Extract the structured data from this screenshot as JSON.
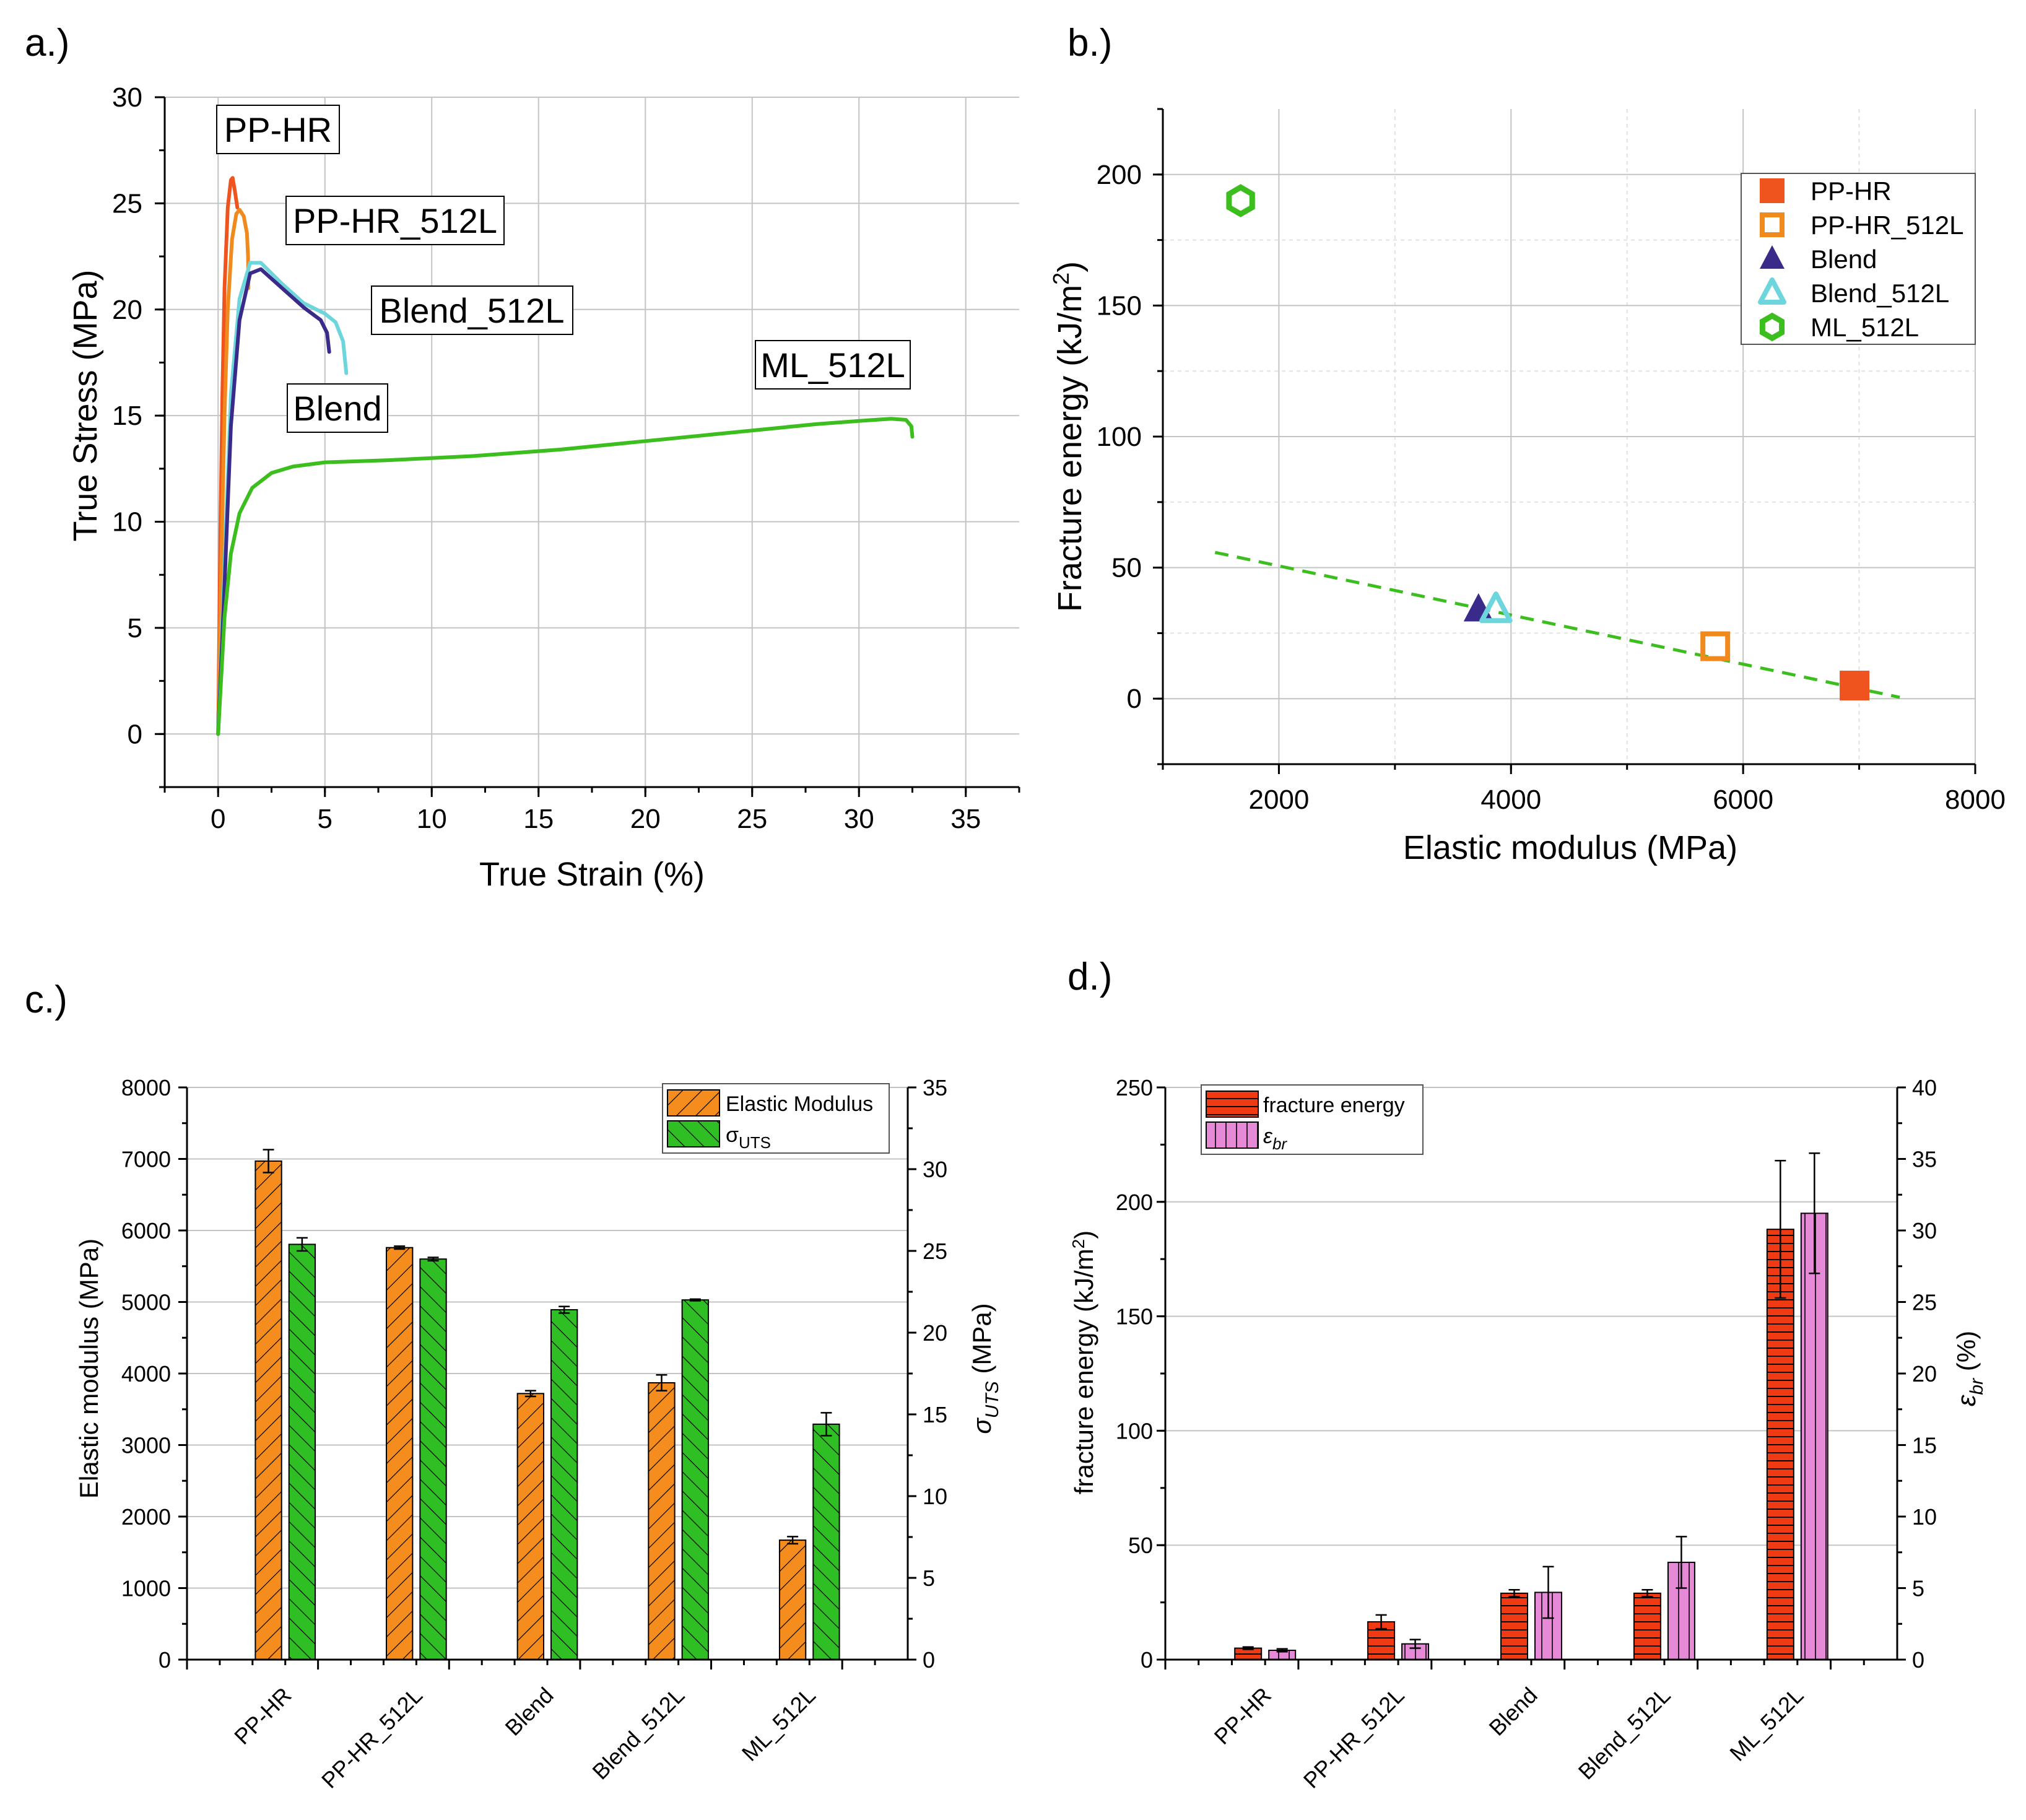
{
  "chart_data": [
    {
      "panel": "a.)",
      "type": "line",
      "xlabel": "True Strain (%)",
      "ylabel": "True Stress (MPa)",
      "xlim": [
        -2.5,
        37.5
      ],
      "ylim": [
        -2.5,
        30
      ],
      "xticks": [
        0,
        5,
        10,
        15,
        20,
        25,
        30,
        35
      ],
      "yticks": [
        0,
        5,
        10,
        15,
        20,
        25,
        30
      ],
      "grid": true,
      "series": [
        {
          "name": "PP-HR",
          "color": "#f0541e",
          "x": [
            0,
            0.1,
            0.2,
            0.3,
            0.45,
            0.6,
            0.68,
            0.78,
            0.9
          ],
          "y": [
            0,
            9,
            16,
            21,
            24.8,
            26.1,
            26.2,
            25.6,
            24.8
          ]
        },
        {
          "name": "PP-HR_512L",
          "color": "#f08a1c",
          "x": [
            0,
            0.15,
            0.3,
            0.45,
            0.65,
            0.85,
            1.0,
            1.2,
            1.35,
            1.4,
            1.42
          ],
          "y": [
            0,
            8,
            15,
            20,
            23.3,
            24.5,
            24.7,
            24.4,
            23.6,
            22.5,
            21
          ]
        },
        {
          "name": "Blend_512L",
          "color": "#6dd6dc",
          "x": [
            0,
            0.3,
            0.6,
            1.0,
            1.5,
            2.0,
            3.0,
            4.0,
            5.0,
            5.5,
            5.85,
            6.0
          ],
          "y": [
            0,
            8,
            16,
            20.5,
            22.2,
            22.2,
            21.2,
            20.3,
            19.8,
            19.4,
            18.5,
            17
          ]
        },
        {
          "name": "Blend",
          "color": "#3a2a8a",
          "x": [
            0,
            0.3,
            0.6,
            1.0,
            1.5,
            2.0,
            3.0,
            4.0,
            4.8,
            5.1,
            5.2
          ],
          "y": [
            0,
            7,
            14.5,
            19.5,
            21.7,
            21.9,
            21.0,
            20.1,
            19.5,
            18.9,
            18
          ]
        },
        {
          "name": "ML_512L",
          "color": "#3cbf1e",
          "x": [
            0,
            0.3,
            0.6,
            1.0,
            1.6,
            2.5,
            3.5,
            5.0,
            8.0,
            12.0,
            16.0,
            20.0,
            24.0,
            28.0,
            30.0,
            31.5,
            32.2,
            32.45,
            32.5
          ],
          "y": [
            0,
            5.5,
            8.5,
            10.4,
            11.6,
            12.3,
            12.6,
            12.8,
            12.9,
            13.1,
            13.4,
            13.8,
            14.2,
            14.6,
            14.75,
            14.85,
            14.8,
            14.5,
            14.0
          ]
        }
      ],
      "annotations": [
        "PP-HR",
        "PP-HR_512L",
        "Blend_512L",
        "Blend",
        "ML_512L"
      ]
    },
    {
      "panel": "b.)",
      "type": "scatter",
      "xlabel": "Elastic modulus (MPa)",
      "ylabel": "Fracture energy (kJ/m²)",
      "xlim": [
        1000,
        8000
      ],
      "ylim": [
        -25,
        225
      ],
      "xticks": [
        2000,
        4000,
        6000,
        8000
      ],
      "yticks": [
        0,
        50,
        100,
        150,
        200
      ],
      "grid": true,
      "legend_position": "top-right",
      "points": [
        {
          "name": "PP-HR",
          "x": 6960,
          "y": 5,
          "marker": "filled-square",
          "color": "#f0541e"
        },
        {
          "name": "PP-HR_512L",
          "x": 5760,
          "y": 20,
          "marker": "open-square",
          "color": "#f08a1c"
        },
        {
          "name": "Blend",
          "x": 3720,
          "y": 34,
          "marker": "filled-triangle",
          "color": "#3a2a8a"
        },
        {
          "name": "Blend_512L",
          "x": 3870,
          "y": 34,
          "marker": "open-triangle",
          "color": "#6dd6dc"
        },
        {
          "name": "ML_512L",
          "x": 1670,
          "y": 190,
          "marker": "open-hexagon",
          "color": "#3cbf1e"
        }
      ],
      "trendline": {
        "x": [
          1450,
          7350
        ],
        "y": [
          55.8,
          0.5
        ],
        "style": "dashed",
        "color": "#3cbf1e"
      }
    },
    {
      "panel": "c.)",
      "type": "bar",
      "categories": [
        "PP-HR",
        "PP-HR_512L",
        "Blend",
        "Blend_512L",
        "ML_512L"
      ],
      "ylabel": "Elastic modulus (MPa)",
      "y2label_main": "σ",
      "y2label_sub": "UTS",
      "y2label_unit": " (MPa)",
      "ylim": [
        0,
        8000
      ],
      "y2lim": [
        0,
        35
      ],
      "yticks": [
        0,
        1000,
        2000,
        3000,
        4000,
        5000,
        6000,
        7000,
        8000
      ],
      "y2ticks": [
        0,
        5,
        10,
        15,
        20,
        25,
        30,
        35
      ],
      "legend_position": "top-right",
      "series": [
        {
          "name": "Elastic Modulus",
          "legend_main": "Elastic Modulus",
          "legend_sub": "",
          "axis": "left",
          "color": "#f58c1e",
          "values": [
            6970,
            5760,
            3720,
            3870,
            1670
          ],
          "errors": [
            160,
            20,
            40,
            110,
            50
          ]
        },
        {
          "name": "σUTS",
          "legend_main": "σ",
          "legend_sub": "UTS",
          "axis": "right",
          "color": "#2fbf24",
          "values": [
            25.4,
            24.5,
            21.4,
            22.0,
            14.4
          ],
          "errors": [
            0.4,
            0.1,
            0.2,
            0.05,
            0.7
          ]
        }
      ]
    },
    {
      "panel": "d.)",
      "type": "bar",
      "categories": [
        "PP-HR",
        "PP-HR_512L",
        "Blend",
        "Blend_512L",
        "ML_512L"
      ],
      "ylabel_main": "fracture energy (kJ/m",
      "ylabel_sup": "2",
      "ylabel_end": ")",
      "y2label_main": "ε",
      "y2label_sub": "br",
      "y2label_unit": " (%)",
      "ylim": [
        0,
        250
      ],
      "y2lim": [
        0,
        40
      ],
      "yticks": [
        0,
        50,
        100,
        150,
        200,
        250
      ],
      "y2ticks": [
        0,
        5,
        10,
        15,
        20,
        25,
        30,
        35,
        40
      ],
      "legend_position": "top-left",
      "series": [
        {
          "name": "fracture energy",
          "legend_main": "fracture energy",
          "legend_sub": "",
          "axis": "left",
          "color": "#f03a14",
          "values": [
            5,
            16.5,
            29,
            29,
            188
          ],
          "errors": [
            0.5,
            3,
            1.5,
            1.5,
            30
          ]
        },
        {
          "name": "εbr",
          "legend_main": "ε",
          "legend_sub": "br",
          "axis": "right",
          "color": "#e68ad8",
          "values": [
            0.65,
            1.1,
            4.7,
            6.8,
            31.2
          ],
          "errors": [
            0.1,
            0.3,
            1.8,
            1.8,
            4.2
          ]
        }
      ]
    }
  ],
  "panel_b_axis_title_y_main": "Fracture energy (kJ/m",
  "panel_b_axis_title_y_sup": "2",
  "panel_b_axis_title_y_end": ")"
}
